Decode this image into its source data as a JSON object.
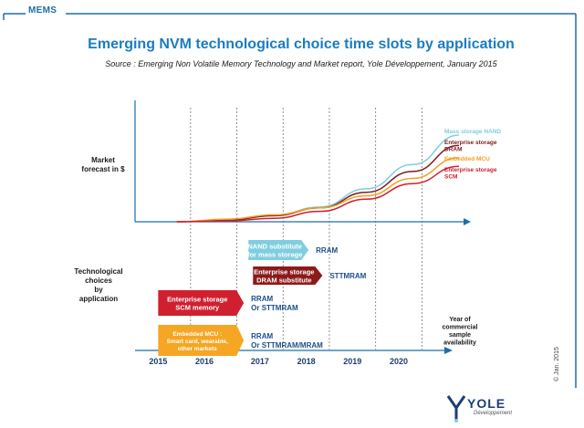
{
  "header": {
    "section_label": "MEMS",
    "title": "Emerging NVM technological choice time slots by application",
    "source": "Source : Emerging Non Volatile Memory Technology and Market report, Yole Développement, January 2015"
  },
  "colors": {
    "frame": "#1b6fa8",
    "title": "#1b7dbf",
    "nand": "#7fcde0",
    "dram": "#7f1d1d",
    "mcu": "#f0a020",
    "scm": "#d02030",
    "label_blue": "#1b4f8a"
  },
  "chart_data": {
    "type": "line",
    "ylabel": "Market forecast in $",
    "row_label": "Technological choices by application",
    "x_axis_note": "Year of commercial sample availability",
    "categories": [
      "2015",
      "2016",
      "2017",
      "2018",
      "2019",
      "2020"
    ],
    "x": [
      2015.4,
      2016.5,
      2017.5,
      2018.5,
      2019.5,
      2020.5,
      2021.5
    ],
    "grid": "vertical dashed lines between years",
    "series": [
      {
        "name": "Mass storage NAND",
        "color": "#7fcde0",
        "values": [
          0,
          0.02,
          0.07,
          0.17,
          0.38,
          0.66,
          1.0
        ]
      },
      {
        "name": "Enterprise storage DRAM",
        "color": "#7f1d1d",
        "values": [
          0,
          0.02,
          0.07,
          0.16,
          0.34,
          0.58,
          0.88
        ]
      },
      {
        "name": "Embedded MCU",
        "color": "#f0a020",
        "values": [
          0,
          0.03,
          0.08,
          0.16,
          0.3,
          0.5,
          0.74
        ]
      },
      {
        "name": "Enterprise storage SCM",
        "color": "#d02030",
        "values": [
          0,
          0.01,
          0.04,
          0.12,
          0.26,
          0.44,
          0.64
        ]
      }
    ],
    "legend": [
      {
        "lines": [
          "Mass storage NAND"
        ],
        "color": "#7fcde0"
      },
      {
        "lines": [
          "Enterprise storage",
          "DRAM"
        ],
        "color": "#7f1d1d"
      },
      {
        "lines": [
          "Embedded MCU"
        ],
        "color": "#f0a020"
      },
      {
        "lines": [
          "Enterprise storage",
          "SCM"
        ],
        "color": "#d02030"
      }
    ],
    "ylabel_lines": [
      "Market",
      "forecast in $"
    ],
    "row_label_lines": [
      "Technological",
      "choices",
      "by",
      "application"
    ],
    "x_axis_note_lines": [
      "Year of",
      "commercial",
      "sample",
      "availability"
    ],
    "timeline": [
      {
        "lines": [
          "NAND substitute",
          "for mass storage"
        ],
        "start": 2016.95,
        "end": 2018.25,
        "row": 0,
        "color": "#7fcde0",
        "text_color": "#ffffff",
        "techs": [
          "RRAM"
        ]
      },
      {
        "lines": [
          "Enterprise storage",
          "DRAM substitute"
        ],
        "start": 2017.05,
        "end": 2018.55,
        "row": 1,
        "color": "#8b1a1a",
        "text_color": "#ffffff",
        "techs": [
          "STTMRAM"
        ]
      },
      {
        "lines": [
          "Enterprise storage",
          "SCM memory"
        ],
        "start": 2015.0,
        "end": 2016.85,
        "row": 2,
        "color": "#d02030",
        "text_color": "#ffffff",
        "techs": [
          "RRAM",
          "Or STTMRAM"
        ]
      },
      {
        "lines": [
          "Embedded MCU :",
          "Smart card, wearable,",
          "other markets"
        ],
        "start": 2015.0,
        "end": 2016.85,
        "row": 3,
        "color": "#f5a623",
        "text_color": "#ffffff",
        "techs": [
          "RRAM",
          "Or STTMRAM/MRAM"
        ]
      }
    ]
  },
  "footer": {
    "credit": "© Jan. 2015",
    "logo_name": "YOLE",
    "logo_subtitle": "Développement"
  }
}
